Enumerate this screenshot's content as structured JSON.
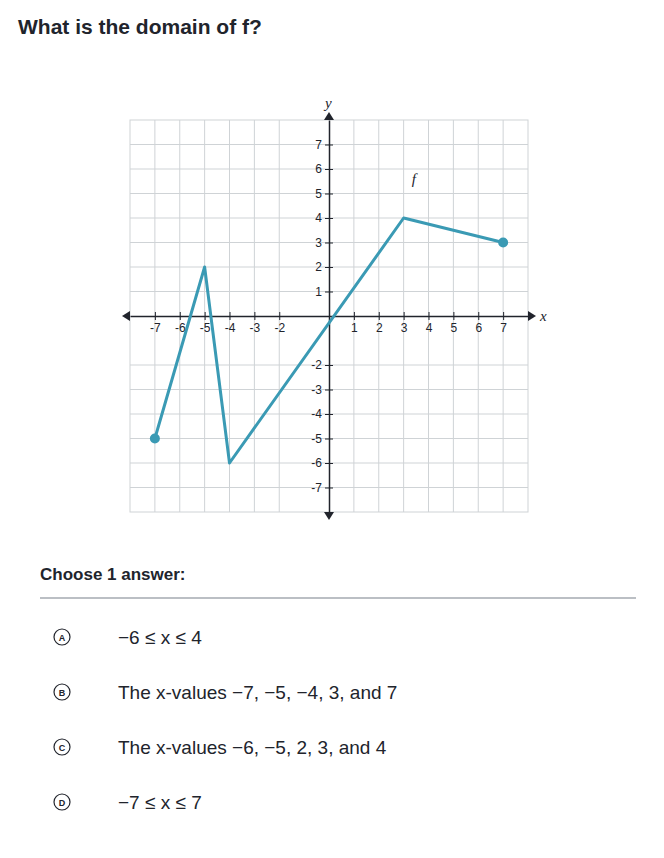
{
  "question": "What is the domain of f?",
  "chart_data": {
    "type": "line",
    "xlabel": "x",
    "ylabel": "y",
    "x": [
      -7,
      -5,
      -4,
      3,
      7
    ],
    "series": [
      {
        "name": "f",
        "color": "#3a9ab4",
        "values": [
          -5,
          2,
          -6,
          4,
          3
        ],
        "marker": "endpoints"
      }
    ],
    "xlim": [
      -8,
      8
    ],
    "ylim": [
      -8,
      8
    ],
    "xticks": [
      -7,
      -6,
      -5,
      -4,
      -3,
      -2,
      1,
      2,
      3,
      4,
      5,
      6,
      7
    ],
    "yticks": [
      -7,
      -6,
      -5,
      -4,
      -3,
      -2,
      1,
      2,
      3,
      4,
      5,
      6,
      7
    ],
    "grid": true
  },
  "prompt": "Choose 1 answer:",
  "choices": [
    {
      "letter": "A",
      "text": "−6 ≤ x ≤ 4"
    },
    {
      "letter": "B",
      "text": "The x-values −7, −5, −4, 3, and 7"
    },
    {
      "letter": "C",
      "text": "The x-values −6, −5, 2, 3, and 4"
    },
    {
      "letter": "D",
      "text": "−7 ≤ x ≤ 7"
    }
  ]
}
